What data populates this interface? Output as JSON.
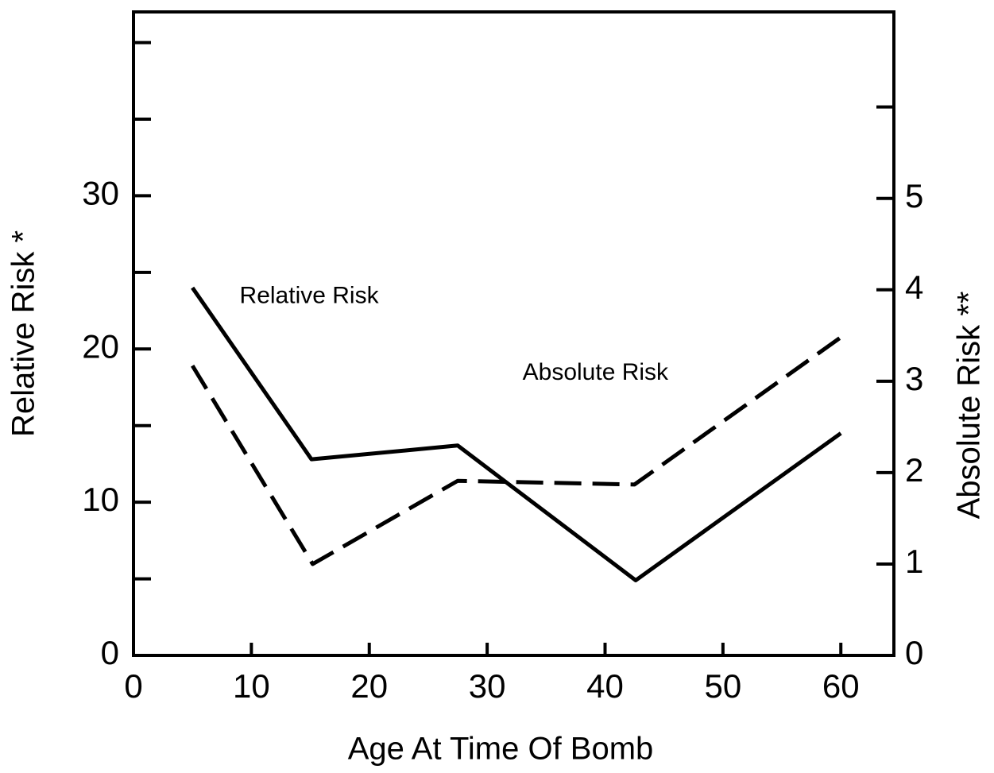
{
  "chart_data": {
    "type": "line",
    "xlabel": "Age At Time Of Bomb",
    "ylabel": "Relative Risk *",
    "y2label": "Absolute Risk **",
    "annotations": [
      {
        "text": "Relative Risk",
        "x": 9,
        "y": 23.4
      },
      {
        "text": "Absolute Risk",
        "x": 33,
        "y": 18.4
      }
    ],
    "xlim": [
      0,
      64.5
    ],
    "xticks": [
      0,
      10,
      20,
      30,
      40,
      50,
      60
    ],
    "ylim": [
      0,
      42
    ],
    "yticks": [
      0,
      10,
      20,
      30
    ],
    "yminor_ticks": [
      5,
      15,
      25,
      35,
      40
    ],
    "y2lim": [
      0,
      7.04
    ],
    "y2ticks": [
      0,
      1,
      2,
      3,
      4,
      5
    ],
    "y2minor_ticks": [
      6
    ],
    "series": [
      {
        "name": "Relative Risk",
        "color": "#000000",
        "dash": "solid",
        "x": [
          5,
          15.1,
          27.5,
          42.6,
          60
        ],
        "values": [
          24,
          12.8,
          13.7,
          4.9,
          14.5
        ]
      },
      {
        "name": "Absolute Risk",
        "color": "#000000",
        "dash": "dashed",
        "axis": "y2",
        "x": [
          5,
          15.2,
          27.5,
          42.5,
          60
        ],
        "values": [
          3.17,
          1.0,
          1.91,
          1.87,
          3.48
        ]
      }
    ]
  }
}
